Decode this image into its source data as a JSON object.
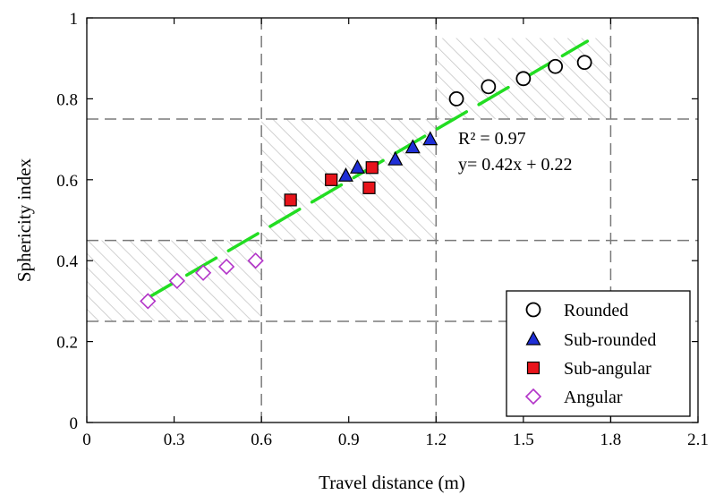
{
  "chart_data": {
    "type": "scatter",
    "xlabel": "Travel distance (m)",
    "ylabel": "Sphericity index",
    "xlim": [
      0,
      2.1
    ],
    "ylim": [
      0,
      1
    ],
    "xticks": [
      "0",
      "0.3",
      "0.6",
      "0.9",
      "1.2",
      "1.5",
      "1.8",
      "2.1"
    ],
    "xtick_values": [
      0,
      0.3,
      0.6,
      0.9,
      1.2,
      1.5,
      1.8,
      2.1
    ],
    "yticks": [
      "0",
      "0.2",
      "0.4",
      "0.6",
      "0.8",
      "1"
    ],
    "ytick_values": [
      0,
      0.2,
      0.4,
      0.6,
      0.8,
      1
    ],
    "grid": false,
    "legend_position": "bottom-right",
    "reference_lines": {
      "x": [
        0.6,
        1.2,
        1.8
      ],
      "y": [
        0.25,
        0.45,
        0.75
      ]
    },
    "shaded_regions": [
      {
        "x": [
          0,
          0.6
        ],
        "y": [
          0.25,
          0.45
        ]
      },
      {
        "x": [
          0.6,
          1.2
        ],
        "y": [
          0.45,
          0.75
        ]
      },
      {
        "x": [
          1.2,
          1.8
        ],
        "y": [
          0.75,
          0.95
        ]
      }
    ],
    "series": [
      {
        "name": "Rounded",
        "marker": "circle",
        "color": "#000000",
        "fill": "#ffffff",
        "x": [
          1.27,
          1.38,
          1.5,
          1.61,
          1.71
        ],
        "y": [
          0.8,
          0.83,
          0.85,
          0.88,
          0.89
        ]
      },
      {
        "name": "Sub-rounded",
        "marker": "triangle",
        "color": "#000000",
        "fill": "#1f2fd6",
        "x": [
          0.89,
          0.93,
          1.06,
          1.12,
          1.18
        ],
        "y": [
          0.61,
          0.63,
          0.65,
          0.68,
          0.7
        ]
      },
      {
        "name": "Sub-angular",
        "marker": "square",
        "color": "#000000",
        "fill": "#e8141b",
        "x": [
          0.7,
          0.84,
          0.97,
          0.98
        ],
        "y": [
          0.55,
          0.6,
          0.58,
          0.63
        ]
      },
      {
        "name": "Angular",
        "marker": "diamond",
        "color": "#b233c8",
        "fill": "#ffffff",
        "x": [
          0.21,
          0.31,
          0.4,
          0.48,
          0.58
        ],
        "y": [
          0.3,
          0.35,
          0.37,
          0.385,
          0.4
        ]
      }
    ],
    "fit_line": {
      "color": "#22dd22",
      "x_range": [
        0.2,
        1.72
      ],
      "slope": 0.42,
      "intercept": 0.22,
      "r2_label": "R² = 0.97",
      "equation_label": "y= 0.42x + 0.22"
    }
  }
}
